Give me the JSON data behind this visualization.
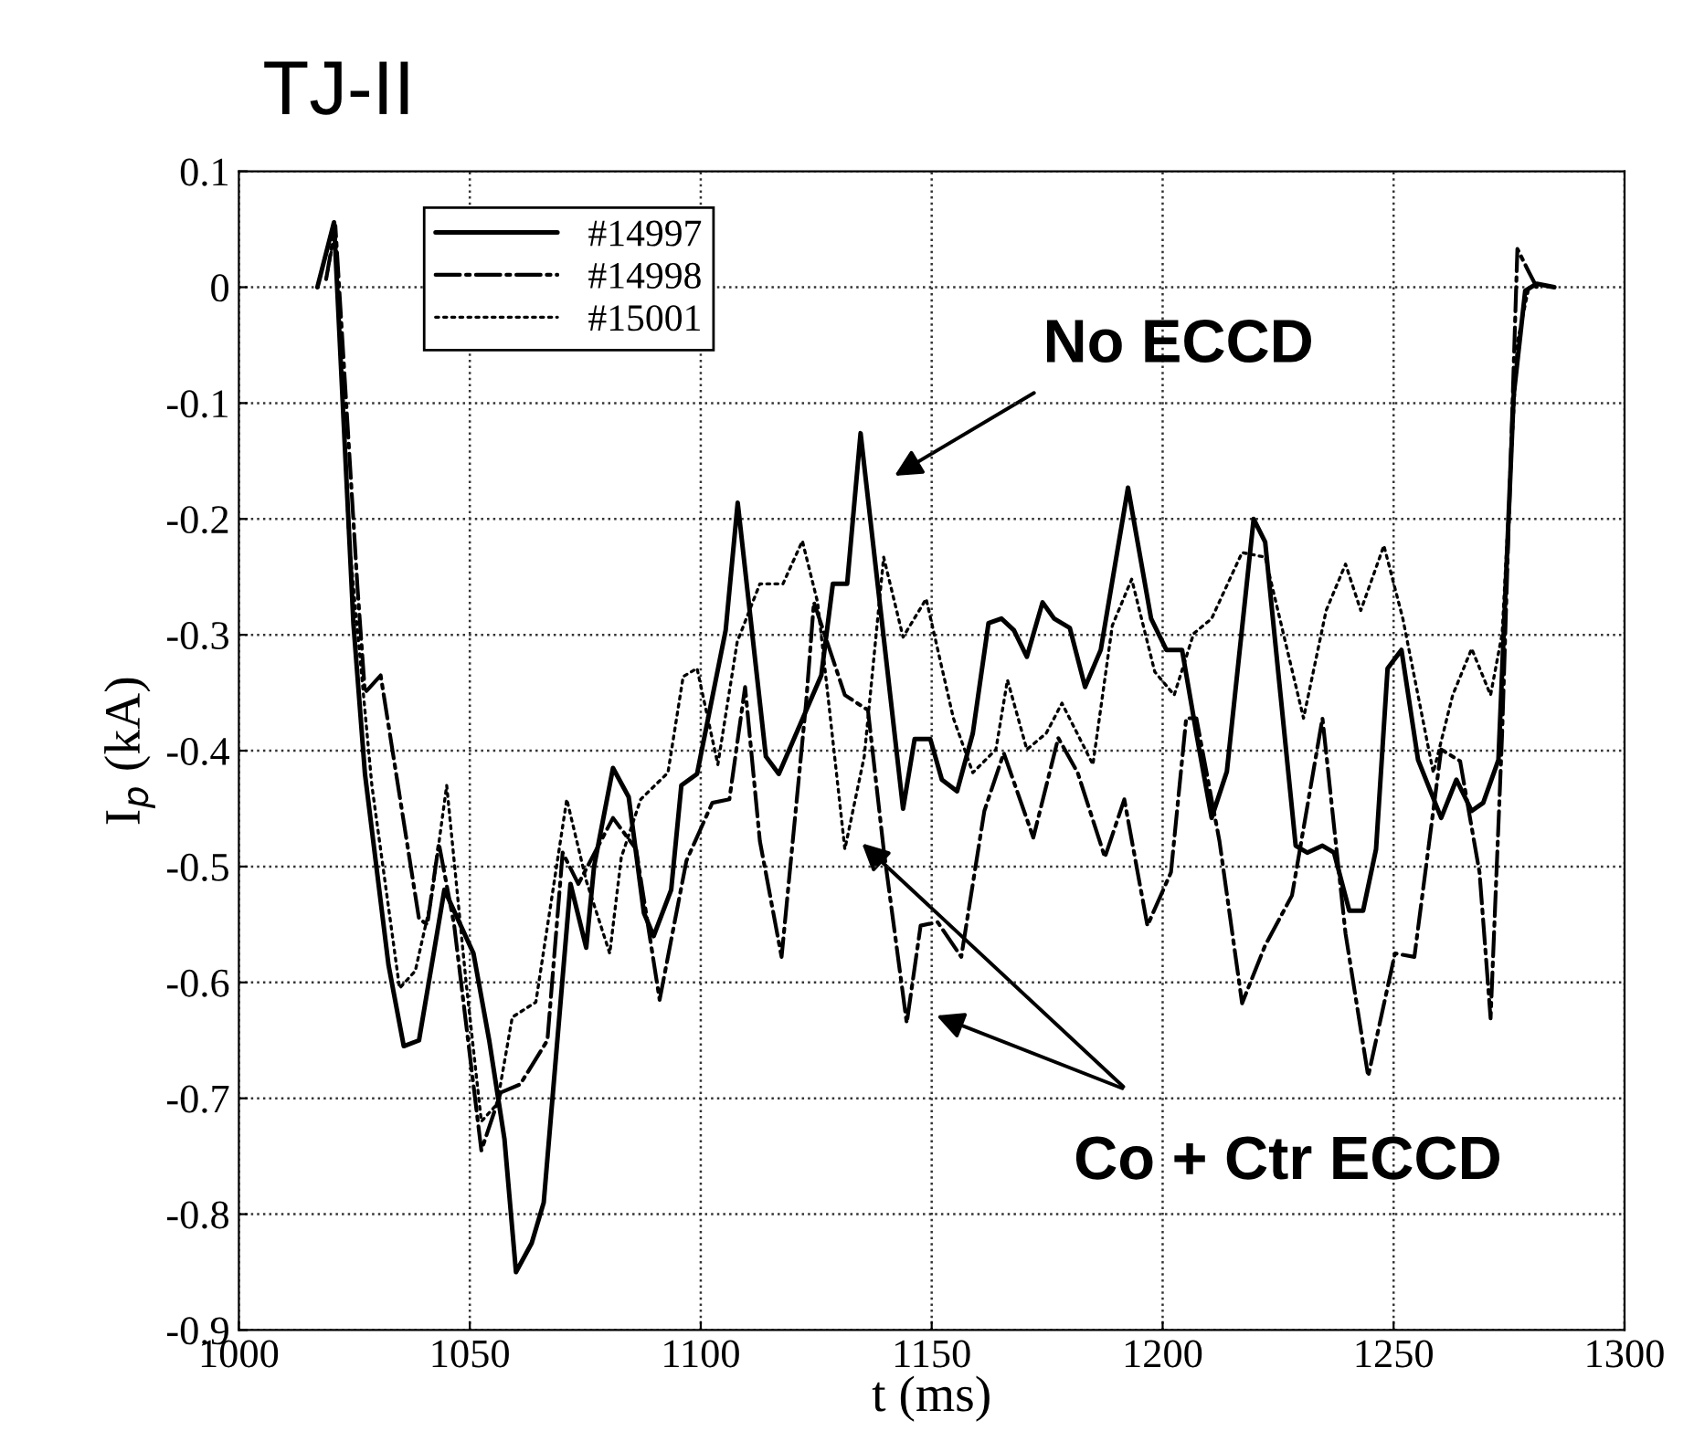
{
  "chart_data": {
    "type": "line",
    "title": "TJ-II",
    "xlabel": "t (ms)",
    "ylabel": "I$_{p}$ (kA)",
    "xlim": [
      1000,
      1300
    ],
    "xticks": [
      1000,
      1050,
      1100,
      1150,
      1200,
      1250,
      1300
    ],
    "ylim": [
      -0.9,
      0.1
    ],
    "yticks": [
      {
        "value": -0.9,
        "label": "-0.9"
      },
      {
        "value": -0.8,
        "label": "-0.8"
      },
      {
        "value": -0.7,
        "label": "-0.7"
      },
      {
        "value": -0.6,
        "label": "-0.6"
      },
      {
        "value": -0.5,
        "label": "-0.5"
      },
      {
        "value": -0.4,
        "label": "-0.4"
      },
      {
        "value": -0.3,
        "label": "-0.3"
      },
      {
        "value": -0.2,
        "label": "-0.2"
      },
      {
        "value": -0.1,
        "label": "-0.1"
      },
      {
        "value": 0,
        "label": "0"
      },
      {
        "value": 0.1,
        "label": "0.1"
      }
    ],
    "grid": true,
    "legend": "top left",
    "marker": "none",
    "series": [
      {
        "name": "#14997",
        "color": "#000000",
        "line_style": "solid",
        "x": [
          1017,
          1020.6,
          1024.8,
          1027.3,
          1032.4,
          1035.7,
          1039,
          1044.5,
          1050.8,
          1054.2,
          1057.5,
          1060,
          1063.4,
          1066,
          1071.8,
          1075.2,
          1076.9,
          1081,
          1084.4,
          1087.7,
          1089.8,
          1093.6,
          1095.8,
          1099.2,
          1105.4,
          1108,
          1114.1,
          1116.9,
          1126.1,
          1128.6,
          1131.7,
          1134.6,
          1143.8,
          1146.3,
          1149.7,
          1152.2,
          1155.5,
          1158.9,
          1162.3,
          1165.1,
          1167.8,
          1170.6,
          1174,
          1176.5,
          1179.9,
          1183.2,
          1186.6,
          1192.5,
          1197.5,
          1200.8,
          1204.2,
          1207.3,
          1210.6,
          1213.9,
          1219.7,
          1222.2,
          1228.8,
          1231.3,
          1234.6,
          1237.1,
          1240.4,
          1243.4,
          1246.2,
          1248.7,
          1251.7,
          1255.3,
          1260.3,
          1263.6,
          1266.9,
          1269.4,
          1272.7,
          1276,
          1278.5,
          1281,
          1284.8
        ],
        "values": [
          0,
          0.056,
          -0.29,
          -0.42,
          -0.585,
          -0.655,
          -0.65,
          -0.52,
          -0.575,
          -0.65,
          -0.735,
          -0.85,
          -0.825,
          -0.79,
          -0.515,
          -0.57,
          -0.5,
          -0.415,
          -0.44,
          -0.54,
          -0.56,
          -0.52,
          -0.43,
          -0.42,
          -0.296,
          -0.186,
          -0.405,
          -0.42,
          -0.335,
          -0.256,
          -0.256,
          -0.126,
          -0.45,
          -0.39,
          -0.39,
          -0.425,
          -0.435,
          -0.385,
          -0.29,
          -0.286,
          -0.296,
          -0.319,
          -0.272,
          -0.286,
          -0.294,
          -0.345,
          -0.313,
          -0.173,
          -0.286,
          -0.313,
          -0.313,
          -0.385,
          -0.458,
          -0.418,
          -0.2,
          -0.22,
          -0.482,
          -0.488,
          -0.482,
          -0.488,
          -0.538,
          -0.538,
          -0.485,
          -0.329,
          -0.313,
          -0.408,
          -0.458,
          -0.425,
          -0.452,
          -0.445,
          -0.408,
          -0.093,
          -0.003,
          0.003,
          0
        ]
      },
      {
        "name": "#14998",
        "color": "#000000",
        "line_style": "dashdot",
        "x": [
          1018.9,
          1020.9,
          1025.7,
          1027.3,
          1030.7,
          1039,
          1040.8,
          1043.3,
          1046.6,
          1052.5,
          1056.7,
          1060.9,
          1066.8,
          1070.1,
          1073.5,
          1081,
          1086,
          1091.1,
          1096.9,
          1102.5,
          1106.2,
          1109.6,
          1112.8,
          1117.5,
          1122.8,
          1124.5,
          1131.2,
          1136.2,
          1139.6,
          1144.6,
          1147.6,
          1151.3,
          1156.4,
          1161.4,
          1165.6,
          1172,
          1177.4,
          1181.6,
          1187.5,
          1191.7,
          1196.7,
          1201.8,
          1205.1,
          1207.3,
          1212.3,
          1217.2,
          1222.2,
          1228,
          1234.6,
          1239.6,
          1244.5,
          1250.3,
          1254.5,
          1260.3,
          1264.4,
          1268.6,
          1271,
          1273.5,
          1276.8,
          1279.3,
          1281
        ],
        "values": [
          0.007,
          0.053,
          -0.26,
          -0.35,
          -0.335,
          -0.545,
          -0.55,
          -0.48,
          -0.55,
          -0.745,
          -0.695,
          -0.688,
          -0.65,
          -0.488,
          -0.515,
          -0.458,
          -0.485,
          -0.615,
          -0.495,
          -0.445,
          -0.442,
          -0.345,
          -0.478,
          -0.578,
          -0.359,
          -0.272,
          -0.352,
          -0.365,
          -0.485,
          -0.635,
          -0.551,
          -0.548,
          -0.578,
          -0.452,
          -0.402,
          -0.475,
          -0.389,
          -0.419,
          -0.492,
          -0.442,
          -0.551,
          -0.505,
          -0.372,
          -0.372,
          -0.478,
          -0.618,
          -0.568,
          -0.525,
          -0.372,
          -0.558,
          -0.681,
          -0.575,
          -0.578,
          -0.399,
          -0.409,
          -0.505,
          -0.631,
          -0.385,
          0.033,
          0.013,
          0
        ]
      },
      {
        "name": "#15001",
        "color": "#000000",
        "line_style": "dotted",
        "x": [
          1018.9,
          1020.9,
          1023.8,
          1028.8,
          1034.8,
          1038.2,
          1041.6,
          1045,
          1049.2,
          1052.5,
          1055.9,
          1059.2,
          1064.3,
          1071,
          1075.2,
          1080.3,
          1082.8,
          1087,
          1092.9,
          1096.2,
          1099.2,
          1103.7,
          1107.9,
          1112.8,
          1117.8,
          1122,
          1125.3,
          1131.2,
          1135.4,
          1139.6,
          1143.8,
          1148.8,
          1154.7,
          1158.9,
          1163.9,
          1166.4,
          1170.6,
          1174.8,
          1178.2,
          1184.9,
          1189.1,
          1193.3,
          1198.3,
          1202.5,
          1206.7,
          1210.6,
          1217.2,
          1222.2,
          1230.5,
          1235.4,
          1239.6,
          1242.9,
          1247.9,
          1252,
          1258.6,
          1262.8,
          1266.9,
          1271,
          1273.5,
          1276.8,
          1279.3
        ],
        "values": [
          0.007,
          0.05,
          -0.215,
          -0.43,
          -0.605,
          -0.59,
          -0.53,
          -0.43,
          -0.6,
          -0.72,
          -0.705,
          -0.63,
          -0.617,
          -0.442,
          -0.512,
          -0.575,
          -0.492,
          -0.442,
          -0.419,
          -0.336,
          -0.329,
          -0.412,
          -0.306,
          -0.256,
          -0.256,
          -0.219,
          -0.272,
          -0.485,
          -0.405,
          -0.233,
          -0.302,
          -0.269,
          -0.372,
          -0.419,
          -0.399,
          -0.339,
          -0.399,
          -0.385,
          -0.359,
          -0.412,
          -0.292,
          -0.252,
          -0.332,
          -0.352,
          -0.299,
          -0.286,
          -0.229,
          -0.233,
          -0.372,
          -0.279,
          -0.239,
          -0.279,
          -0.223,
          -0.286,
          -0.419,
          -0.352,
          -0.312,
          -0.352,
          -0.299,
          -0.047,
          0
        ]
      }
    ],
    "annotations": [
      "No ECCD",
      "Co + Ctr ECCD"
    ]
  }
}
